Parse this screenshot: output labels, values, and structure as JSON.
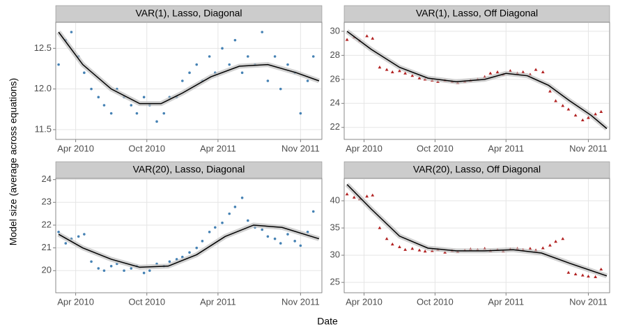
{
  "axis_labels": {
    "x": "Date",
    "y": "Model size (average across equations)"
  },
  "chart_data": [
    {
      "type": "scatter",
      "title": "VAR(1), Lasso, Diagonal",
      "marker": "circle",
      "color": "#4682b4",
      "x": [
        2010.13,
        2010.18,
        2010.22,
        2010.27,
        2010.31,
        2010.36,
        2010.41,
        2010.45,
        2010.5,
        2010.54,
        2010.59,
        2010.64,
        2010.68,
        2010.73,
        2010.77,
        2010.82,
        2010.87,
        2010.91,
        2010.96,
        2011.0,
        2011.05,
        2011.1,
        2011.14,
        2011.19,
        2011.23,
        2011.28,
        2011.33,
        2011.37,
        2011.42,
        2011.46,
        2011.51,
        2011.56,
        2011.6,
        2011.65,
        2011.69,
        2011.74,
        2011.79,
        2011.83,
        2011.88,
        2011.92
      ],
      "values": [
        12.3,
        12.6,
        12.7,
        12.4,
        12.2,
        12.0,
        11.9,
        11.8,
        11.7,
        12.0,
        11.9,
        11.8,
        11.7,
        11.9,
        11.8,
        11.6,
        11.7,
        11.9,
        11.9,
        12.1,
        12.2,
        12.3,
        12.1,
        12.4,
        12.2,
        12.5,
        12.3,
        12.6,
        12.2,
        12.4,
        12.3,
        12.7,
        12.1,
        12.4,
        12.0,
        12.3,
        12.2,
        11.7,
        12.1,
        12.4
      ],
      "fit": {
        "color": "#000000",
        "x": [
          2010.13,
          2010.3,
          2010.5,
          2010.7,
          2010.85,
          2011.0,
          2011.2,
          2011.4,
          2011.6,
          2011.8,
          2011.96
        ],
        "values": [
          12.7,
          12.3,
          12.0,
          11.82,
          11.82,
          11.95,
          12.15,
          12.28,
          12.3,
          12.2,
          12.1
        ]
      },
      "xlim": [
        2010.11,
        2011.98
      ],
      "xticks": [
        {
          "value": 2010.25,
          "label": "Apr 2010"
        },
        {
          "value": 2010.75,
          "label": "Oct 2010"
        },
        {
          "value": 2011.25,
          "label": "Apr 2011"
        },
        {
          "value": 2011.83,
          "label": "Nov 2011"
        }
      ],
      "ylim": [
        11.38,
        12.82
      ],
      "yticks": [
        {
          "value": 11.5,
          "label": "11.5"
        },
        {
          "value": 12.0,
          "label": "12.0"
        },
        {
          "value": 12.5,
          "label": "12.5"
        }
      ],
      "grid": true
    },
    {
      "type": "scatter",
      "title": "VAR(1), Lasso, Off Diagonal",
      "marker": "triangle",
      "color": "#b22222",
      "x": [
        2010.13,
        2010.18,
        2010.22,
        2010.27,
        2010.31,
        2010.36,
        2010.41,
        2010.45,
        2010.5,
        2010.54,
        2010.59,
        2010.64,
        2010.68,
        2010.73,
        2010.77,
        2010.82,
        2010.87,
        2010.91,
        2010.96,
        2011.0,
        2011.05,
        2011.1,
        2011.14,
        2011.19,
        2011.23,
        2011.28,
        2011.33,
        2011.37,
        2011.42,
        2011.46,
        2011.51,
        2011.56,
        2011.6,
        2011.65,
        2011.69,
        2011.74,
        2011.79,
        2011.83,
        2011.88,
        2011.92
      ],
      "values": [
        29.3,
        29.5,
        29.2,
        29.6,
        29.4,
        27.0,
        26.8,
        26.6,
        26.7,
        26.5,
        26.3,
        26.1,
        26.0,
        25.9,
        25.8,
        25.9,
        25.8,
        25.7,
        25.8,
        25.9,
        26.0,
        26.2,
        26.5,
        26.6,
        26.4,
        26.7,
        26.5,
        26.6,
        26.4,
        26.8,
        26.6,
        25.0,
        24.2,
        23.8,
        23.5,
        23.0,
        22.6,
        22.8,
        23.1,
        23.3
      ],
      "fit": {
        "color": "#000000",
        "x": [
          2010.13,
          2010.3,
          2010.5,
          2010.7,
          2010.9,
          2011.1,
          2011.25,
          2011.4,
          2011.55,
          2011.7,
          2011.85,
          2011.96
        ],
        "values": [
          30,
          28.5,
          27.0,
          26.1,
          25.8,
          26.0,
          26.5,
          26.3,
          25.5,
          24.2,
          23.0,
          21.9
        ]
      },
      "xlim": [
        2010.11,
        2011.98
      ],
      "xticks": [
        {
          "value": 2010.25,
          "label": "Apr 2010"
        },
        {
          "value": 2010.75,
          "label": "Oct 2010"
        },
        {
          "value": 2011.25,
          "label": "Apr 2011"
        },
        {
          "value": 2011.83,
          "label": "Nov 2011"
        }
      ],
      "ylim": [
        21.0,
        30.75
      ],
      "yticks": [
        22,
        24,
        26,
        28,
        30
      ],
      "grid": true
    },
    {
      "type": "scatter",
      "title": "VAR(20), Lasso, Diagonal",
      "marker": "circle",
      "color": "#4682b4",
      "x": [
        2010.13,
        2010.18,
        2010.22,
        2010.27,
        2010.31,
        2010.36,
        2010.41,
        2010.45,
        2010.5,
        2010.54,
        2010.59,
        2010.64,
        2010.68,
        2010.73,
        2010.77,
        2010.82,
        2010.87,
        2010.91,
        2010.96,
        2011.0,
        2011.05,
        2011.1,
        2011.14,
        2011.19,
        2011.23,
        2011.28,
        2011.33,
        2011.37,
        2011.42,
        2011.46,
        2011.51,
        2011.56,
        2011.6,
        2011.65,
        2011.69,
        2011.74,
        2011.79,
        2011.83,
        2011.88,
        2011.92
      ],
      "values": [
        21.7,
        21.2,
        21.4,
        21.5,
        21.6,
        20.4,
        20.1,
        20.0,
        20.2,
        20.3,
        20.0,
        20.1,
        20.2,
        19.9,
        20.0,
        20.3,
        20.2,
        20.4,
        20.5,
        20.6,
        20.8,
        21.0,
        21.3,
        21.7,
        21.9,
        22.1,
        22.5,
        22.8,
        23.2,
        22.2,
        21.9,
        21.8,
        21.5,
        21.4,
        21.2,
        21.6,
        21.3,
        21.1,
        21.7,
        22.6
      ],
      "fit": {
        "color": "#000000",
        "x": [
          2010.13,
          2010.3,
          2010.5,
          2010.7,
          2010.9,
          2011.1,
          2011.3,
          2011.5,
          2011.7,
          2011.96
        ],
        "values": [
          21.6,
          21.0,
          20.5,
          20.15,
          20.2,
          20.7,
          21.5,
          22.0,
          21.9,
          21.4
        ]
      },
      "xlim": [
        2010.11,
        2011.98
      ],
      "xticks": [
        {
          "value": 2010.25,
          "label": "Apr 2010"
        },
        {
          "value": 2010.75,
          "label": "Oct 2010"
        },
        {
          "value": 2011.25,
          "label": "Apr 2011"
        },
        {
          "value": 2011.83,
          "label": "Nov 2011"
        }
      ],
      "ylim": [
        19.03,
        24.05
      ],
      "yticks": [
        20,
        21,
        22,
        23,
        24
      ],
      "grid": true
    },
    {
      "type": "scatter",
      "title": "VAR(20), Lasso, Off Diagonal",
      "marker": "triangle",
      "color": "#b22222",
      "x": [
        2010.13,
        2010.18,
        2010.22,
        2010.27,
        2010.31,
        2010.36,
        2010.41,
        2010.45,
        2010.5,
        2010.54,
        2010.59,
        2010.64,
        2010.68,
        2010.73,
        2010.77,
        2010.82,
        2010.87,
        2010.91,
        2010.96,
        2011.0,
        2011.05,
        2011.1,
        2011.14,
        2011.19,
        2011.23,
        2011.28,
        2011.33,
        2011.37,
        2011.42,
        2011.46,
        2011.51,
        2011.56,
        2011.6,
        2011.65,
        2011.69,
        2011.74,
        2011.79,
        2011.83,
        2011.88,
        2011.92
      ],
      "values": [
        41.2,
        40.6,
        40.3,
        40.8,
        41.0,
        35.0,
        33.0,
        32.0,
        31.5,
        31.0,
        31.2,
        30.9,
        30.7,
        30.8,
        31.0,
        30.5,
        30.8,
        30.6,
        30.9,
        31.1,
        31.0,
        31.2,
        30.8,
        31.0,
        30.7,
        31.1,
        31.2,
        31.0,
        31.2,
        30.9,
        31.3,
        31.8,
        32.5,
        33.0,
        26.8,
        26.5,
        26.3,
        26.1,
        26.0,
        27.4
      ],
      "fit": {
        "color": "#000000",
        "x": [
          2010.13,
          2010.3,
          2010.5,
          2010.7,
          2010.9,
          2011.1,
          2011.3,
          2011.5,
          2011.7,
          2011.96
        ],
        "values": [
          43,
          38.5,
          33.5,
          31.3,
          30.8,
          30.8,
          31.0,
          30.4,
          28.5,
          26.2
        ]
      },
      "xlim": [
        2010.11,
        2011.98
      ],
      "xticks": [
        {
          "value": 2010.25,
          "label": "Apr 2010"
        },
        {
          "value": 2010.75,
          "label": "Oct 2010"
        },
        {
          "value": 2011.25,
          "label": "Apr 2011"
        },
        {
          "value": 2011.83,
          "label": "Nov 2011"
        }
      ],
      "ylim": [
        23.1,
        44.1
      ],
      "yticks": [
        25,
        30,
        35,
        40
      ],
      "grid": true
    }
  ]
}
